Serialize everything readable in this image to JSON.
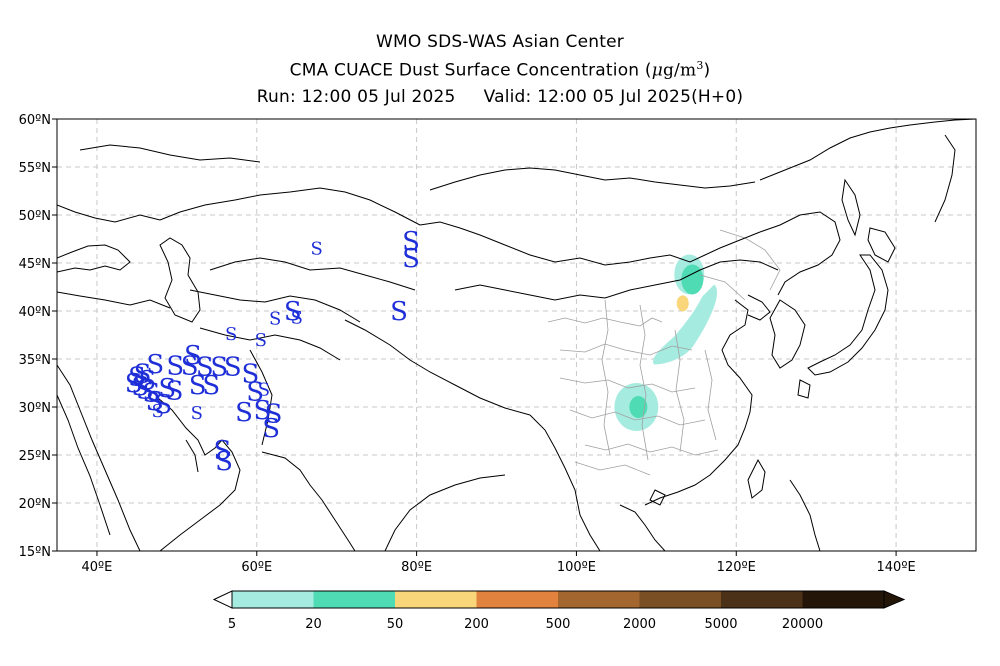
{
  "header": {
    "line1": "WMO SDS-WAS Asian Center",
    "line2_text": "CMA CUACE Dust Surface Concentration (",
    "line2_unit_mu": "μ",
    "line2_unit_g": "g/m",
    "line2_unit_exp": "3",
    "line2_close": ")",
    "run_label": "Run: 12:00 05 Jul 2025",
    "valid_label": "Valid: 12:00 05 Jul 2025(H+0)"
  },
  "map": {
    "lon_range": [
      35,
      150
    ],
    "lat_range": [
      15,
      60
    ],
    "lon_ticks": [
      40,
      60,
      80,
      100,
      120,
      140
    ],
    "lon_tick_labels": [
      "40ºE",
      "60ºE",
      "80ºE",
      "100ºE",
      "120ºE",
      "140ºE"
    ],
    "lat_ticks": [
      15,
      20,
      25,
      30,
      35,
      40,
      45,
      50,
      55,
      60
    ],
    "lat_tick_labels": [
      "15ºN",
      "20ºN",
      "25ºN",
      "30ºN",
      "35ºN",
      "40ºN",
      "45ºN",
      "50ºN",
      "55ºN",
      "60ºN"
    ],
    "grid": true,
    "dust_regions": [
      {
        "name": "north-china-plume",
        "lon": 113.5,
        "lat": 38.6,
        "level": 5
      },
      {
        "name": "sichuan-blob",
        "lon": 107.5,
        "lat": 30.0,
        "level": 5
      },
      {
        "name": "inner-mongolia-core",
        "lon": 113.3,
        "lat": 40.8,
        "level": 50
      }
    ],
    "station_symbol": "S",
    "stations": [
      {
        "lon": 67.5,
        "lat": 46.5,
        "size": "small"
      },
      {
        "lon": 79.3,
        "lat": 47.3,
        "size": "large"
      },
      {
        "lon": 79.3,
        "lat": 45.5,
        "size": "large"
      },
      {
        "lon": 77.8,
        "lat": 40.0,
        "size": "large"
      },
      {
        "lon": 64.5,
        "lat": 40.0,
        "size": "large"
      },
      {
        "lon": 65.0,
        "lat": 39.3,
        "size": "small"
      },
      {
        "lon": 62.3,
        "lat": 39.2,
        "size": "small"
      },
      {
        "lon": 56.8,
        "lat": 37.6,
        "size": "small"
      },
      {
        "lon": 60.5,
        "lat": 37.0,
        "size": "small"
      },
      {
        "lon": 52.0,
        "lat": 35.4,
        "size": "large"
      },
      {
        "lon": 49.8,
        "lat": 34.3,
        "size": "large"
      },
      {
        "lon": 51.6,
        "lat": 34.3,
        "size": "large"
      },
      {
        "lon": 47.3,
        "lat": 34.5,
        "size": "large"
      },
      {
        "lon": 53.5,
        "lat": 34.2,
        "size": "large"
      },
      {
        "lon": 55.3,
        "lat": 34.2,
        "size": "large"
      },
      {
        "lon": 57.0,
        "lat": 34.2,
        "size": "large"
      },
      {
        "lon": 59.2,
        "lat": 33.5,
        "size": "large"
      },
      {
        "lon": 45.0,
        "lat": 33.2,
        "size": "large"
      },
      {
        "lon": 45.7,
        "lat": 33.5,
        "size": "large"
      },
      {
        "lon": 46.3,
        "lat": 32.8,
        "size": "large"
      },
      {
        "lon": 44.6,
        "lat": 32.5,
        "size": "large"
      },
      {
        "lon": 45.4,
        "lat": 32.2,
        "size": "large"
      },
      {
        "lon": 46.0,
        "lat": 31.8,
        "size": "large"
      },
      {
        "lon": 46.8,
        "lat": 31.5,
        "size": "large"
      },
      {
        "lon": 48.8,
        "lat": 32.0,
        "size": "large"
      },
      {
        "lon": 49.7,
        "lat": 31.7,
        "size": "large"
      },
      {
        "lon": 52.6,
        "lat": 32.3,
        "size": "large"
      },
      {
        "lon": 54.3,
        "lat": 32.3,
        "size": "large"
      },
      {
        "lon": 59.8,
        "lat": 31.6,
        "size": "large"
      },
      {
        "lon": 60.9,
        "lat": 31.8,
        "size": "small"
      },
      {
        "lon": 47.2,
        "lat": 30.6,
        "size": "large"
      },
      {
        "lon": 48.3,
        "lat": 30.3,
        "size": "large"
      },
      {
        "lon": 47.6,
        "lat": 29.6,
        "size": "small"
      },
      {
        "lon": 52.5,
        "lat": 29.4,
        "size": "small"
      },
      {
        "lon": 58.4,
        "lat": 29.5,
        "size": "large"
      },
      {
        "lon": 60.7,
        "lat": 29.7,
        "size": "large"
      },
      {
        "lon": 62.1,
        "lat": 29.3,
        "size": "large"
      },
      {
        "lon": 61.8,
        "lat": 27.8,
        "size": "large"
      },
      {
        "lon": 55.7,
        "lat": 25.5,
        "size": "large"
      },
      {
        "lon": 55.9,
        "lat": 24.4,
        "size": "large"
      }
    ]
  },
  "colorbar": {
    "levels": [
      "5",
      "20",
      "50",
      "200",
      "500",
      "2000",
      "5000",
      "20000"
    ],
    "colors": [
      "#a6ebe0",
      "#4fdcb4",
      "#f9d67a",
      "#e1833f",
      "#a2662e",
      "#7a4f24",
      "#4b3118",
      "#241509"
    ],
    "under_color": "#ffffff",
    "over_color": "#241509"
  },
  "colors": {
    "station": "#1f2fd8",
    "coast": "#000000",
    "province": "#a0a0a0",
    "grid": "#c8c8c8"
  }
}
